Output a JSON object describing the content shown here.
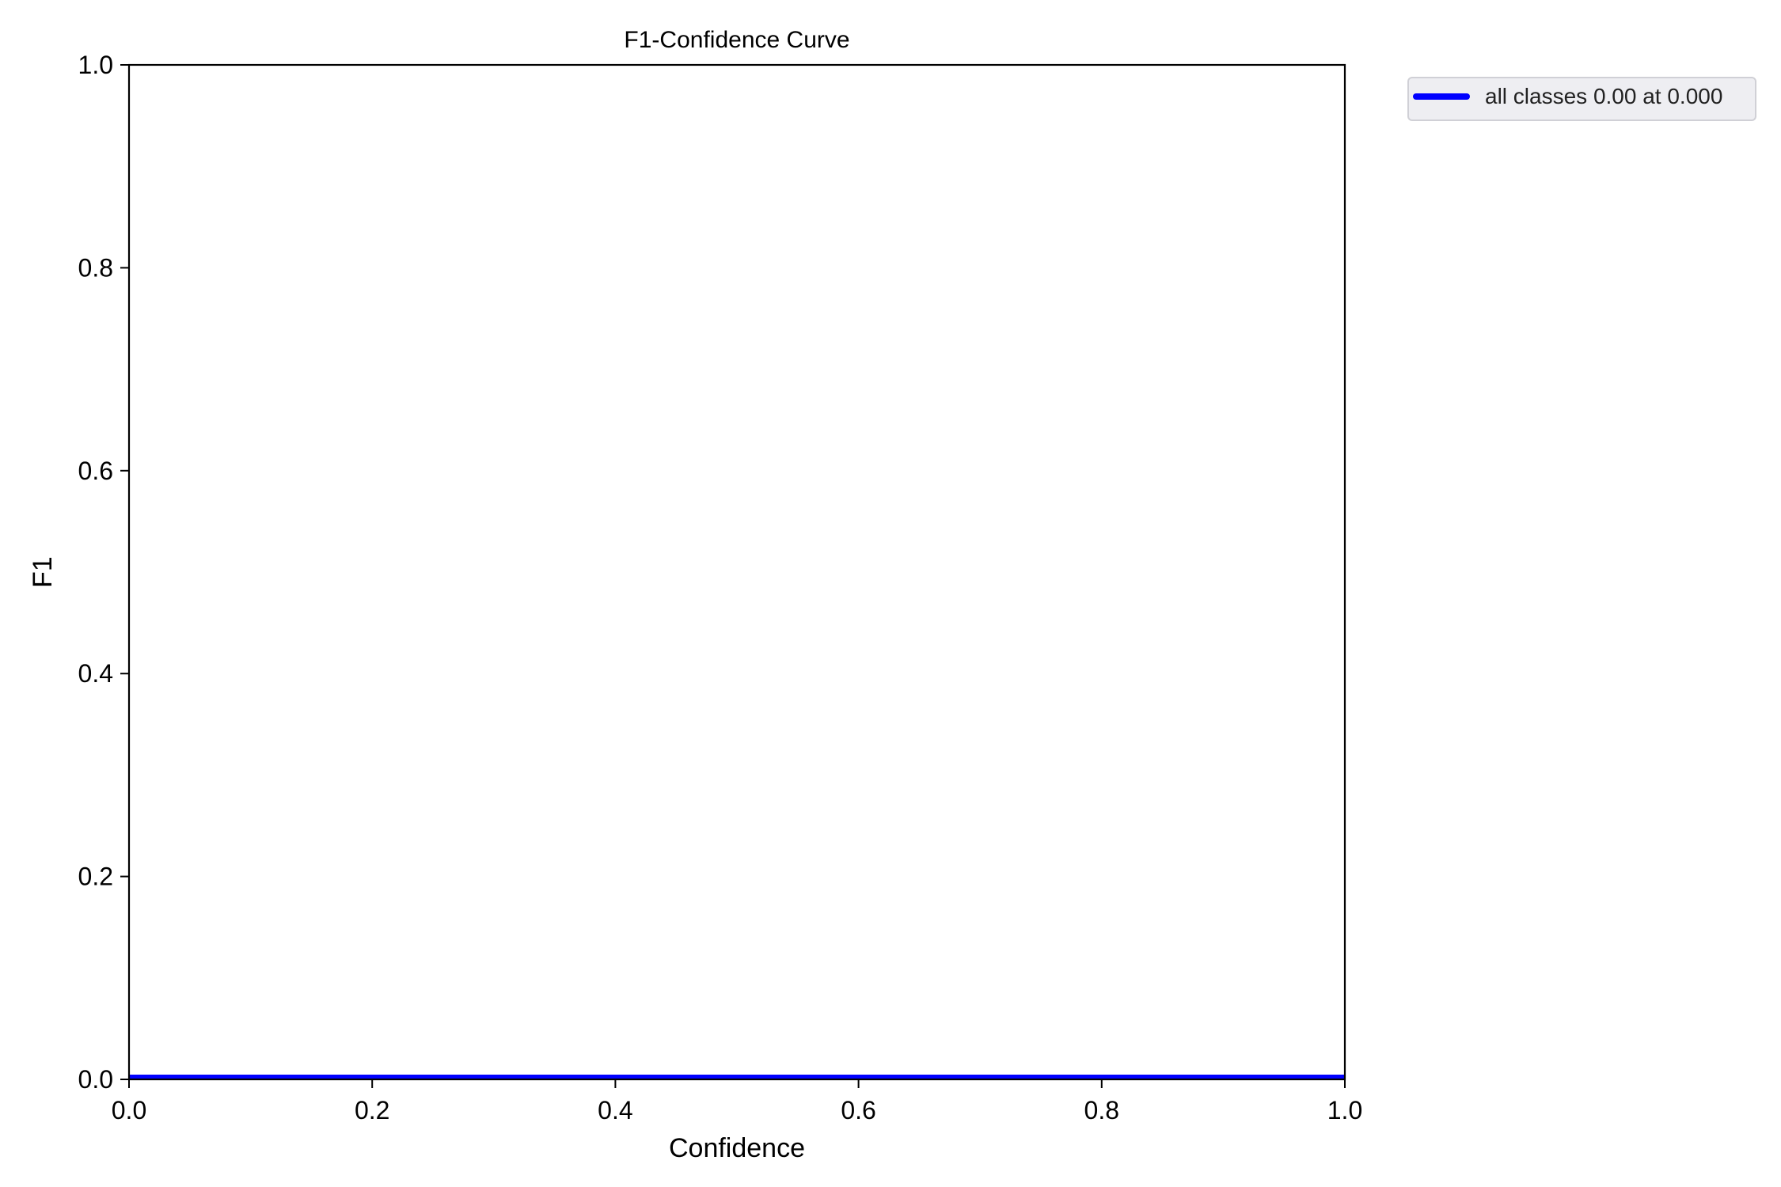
{
  "chart_data": {
    "type": "line",
    "title": "F1-Confidence Curve",
    "xlabel": "Confidence",
    "ylabel": "F1",
    "xlim": [
      0,
      1
    ],
    "ylim": [
      0,
      1
    ],
    "xticks": [
      "0.0",
      "0.2",
      "0.4",
      "0.6",
      "0.8",
      "1.0"
    ],
    "yticks": [
      "0.0",
      "0.2",
      "0.4",
      "0.6",
      "0.8",
      "1.0"
    ],
    "grid": false,
    "legend_position": "outside-top-right",
    "series": [
      {
        "name": "all classes 0.00 at 0.000",
        "color": "#0000ff",
        "x": [
          0.0,
          0.25,
          0.5,
          0.75,
          1.0
        ],
        "y": [
          0.0,
          0.0,
          0.0,
          0.0,
          0.0
        ]
      }
    ]
  }
}
